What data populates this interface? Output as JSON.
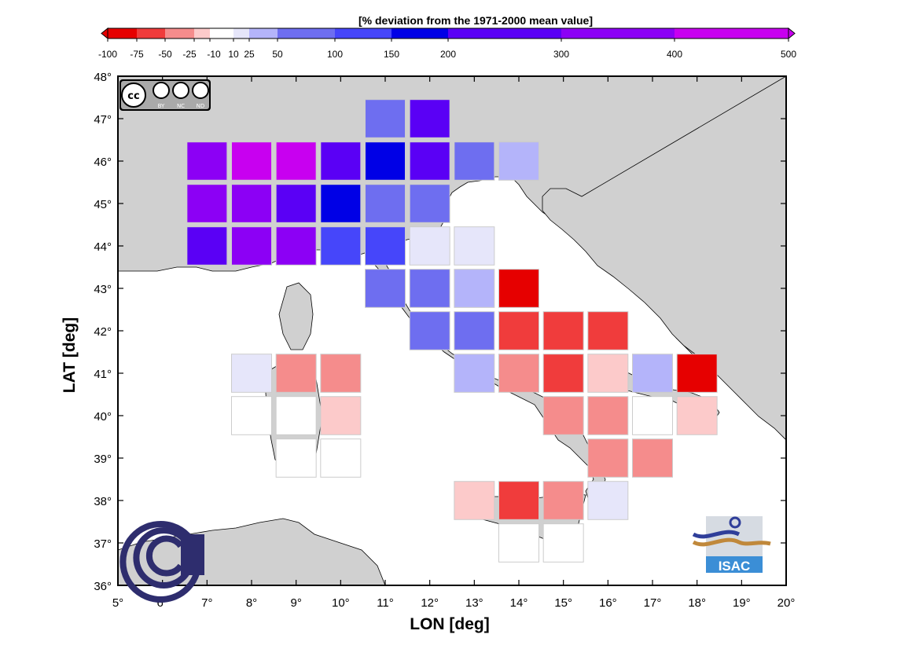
{
  "colorbar": {
    "title": "[% deviation from the 1971-2000 mean value]",
    "stops": [
      -100,
      -75,
      -50,
      -25,
      -10,
      10,
      25,
      50,
      100,
      150,
      200,
      300,
      400,
      500
    ],
    "labels": [
      {
        "value": -100,
        "text": "-100"
      },
      {
        "value": -75,
        "text": "-75"
      },
      {
        "value": -50,
        "text": "-50"
      },
      {
        "value": -25,
        "text": "-25"
      },
      {
        "value": -10,
        "text": "-10"
      },
      {
        "value": 10,
        "text": "10"
      },
      {
        "value": 25,
        "text": "25"
      },
      {
        "value": 50,
        "text": "50"
      },
      {
        "value": 100,
        "text": "100"
      },
      {
        "value": 150,
        "text": "150"
      },
      {
        "value": 200,
        "text": "200"
      },
      {
        "value": 300,
        "text": "300"
      },
      {
        "value": 400,
        "text": "400"
      },
      {
        "value": 500,
        "text": "500"
      }
    ],
    "colors": [
      "#e60000",
      "#f03c3c",
      "#f58c8c",
      "#fccaca",
      "#ffffff",
      "#e6e6fa",
      "#b4b4fa",
      "#6e6ef0",
      "#4646fa",
      "#0000e6",
      "#5a00f5",
      "#8c00f5",
      "#c800f0"
    ],
    "colors_note": "one color per interval between consecutive stops"
  },
  "axes": {
    "xlabel": "LON [deg]",
    "ylabel": "LAT [deg]",
    "xlim": [
      5,
      20
    ],
    "ylim": [
      36,
      48
    ],
    "xticks": [
      "5°",
      "6°",
      "7°",
      "8°",
      "9°",
      "10°",
      "11°",
      "12°",
      "13°",
      "14°",
      "15°",
      "16°",
      "17°",
      "18°",
      "19°",
      "20°"
    ],
    "yticks": [
      "36°",
      "37°",
      "38°",
      "39°",
      "40°",
      "41°",
      "42°",
      "43°",
      "44°",
      "45°",
      "46°",
      "47°",
      "48°"
    ]
  },
  "cells": [
    {
      "lon": 11,
      "lat": 47,
      "color": "#6e6ef0"
    },
    {
      "lon": 12,
      "lat": 47,
      "color": "#5a00f5"
    },
    {
      "lon": 7,
      "lat": 46,
      "color": "#8c00f5"
    },
    {
      "lon": 8,
      "lat": 46,
      "color": "#c800f0"
    },
    {
      "lon": 9,
      "lat": 46,
      "color": "#c800f0"
    },
    {
      "lon": 10,
      "lat": 46,
      "color": "#5a00f5"
    },
    {
      "lon": 11,
      "lat": 46,
      "color": "#0000e6"
    },
    {
      "lon": 12,
      "lat": 46,
      "color": "#5a00f5"
    },
    {
      "lon": 13,
      "lat": 46,
      "color": "#6e6ef0"
    },
    {
      "lon": 14,
      "lat": 46,
      "color": "#b4b4fa"
    },
    {
      "lon": 7,
      "lat": 45,
      "color": "#8c00f5"
    },
    {
      "lon": 8,
      "lat": 45,
      "color": "#8c00f5"
    },
    {
      "lon": 9,
      "lat": 45,
      "color": "#5a00f5"
    },
    {
      "lon": 10,
      "lat": 45,
      "color": "#0000e6"
    },
    {
      "lon": 11,
      "lat": 45,
      "color": "#6e6ef0"
    },
    {
      "lon": 12,
      "lat": 45,
      "color": "#6e6ef0"
    },
    {
      "lon": 7,
      "lat": 44,
      "color": "#5a00f5"
    },
    {
      "lon": 8,
      "lat": 44,
      "color": "#8c00f5"
    },
    {
      "lon": 9,
      "lat": 44,
      "color": "#8c00f5"
    },
    {
      "lon": 10,
      "lat": 44,
      "color": "#4646fa"
    },
    {
      "lon": 11,
      "lat": 44,
      "color": "#4646fa"
    },
    {
      "lon": 12,
      "lat": 44,
      "color": "#e6e6fa"
    },
    {
      "lon": 13,
      "lat": 44,
      "color": "#e6e6fa"
    },
    {
      "lon": 11,
      "lat": 43,
      "color": "#6e6ef0"
    },
    {
      "lon": 12,
      "lat": 43,
      "color": "#6e6ef0"
    },
    {
      "lon": 13,
      "lat": 43,
      "color": "#b4b4fa"
    },
    {
      "lon": 14,
      "lat": 43,
      "color": "#e60000"
    },
    {
      "lon": 12,
      "lat": 42,
      "color": "#6e6ef0"
    },
    {
      "lon": 13,
      "lat": 42,
      "color": "#6e6ef0"
    },
    {
      "lon": 14,
      "lat": 42,
      "color": "#f03c3c"
    },
    {
      "lon": 15,
      "lat": 42,
      "color": "#f03c3c"
    },
    {
      "lon": 16,
      "lat": 42,
      "color": "#f03c3c"
    },
    {
      "lon": 8,
      "lat": 41,
      "color": "#e6e6fa"
    },
    {
      "lon": 9,
      "lat": 41,
      "color": "#f58c8c"
    },
    {
      "lon": 10,
      "lat": 41,
      "color": "#f58c8c"
    },
    {
      "lon": 13,
      "lat": 41,
      "color": "#b4b4fa"
    },
    {
      "lon": 14,
      "lat": 41,
      "color": "#f58c8c"
    },
    {
      "lon": 15,
      "lat": 41,
      "color": "#f03c3c"
    },
    {
      "lon": 16,
      "lat": 41,
      "color": "#fccaca"
    },
    {
      "lon": 17,
      "lat": 41,
      "color": "#b4b4fa"
    },
    {
      "lon": 18,
      "lat": 41,
      "color": "#e60000"
    },
    {
      "lon": 8,
      "lat": 40,
      "color": "#ffffff"
    },
    {
      "lon": 9,
      "lat": 40,
      "color": "#ffffff"
    },
    {
      "lon": 10,
      "lat": 40,
      "color": "#fccaca"
    },
    {
      "lon": 15,
      "lat": 40,
      "color": "#f58c8c"
    },
    {
      "lon": 16,
      "lat": 40,
      "color": "#f58c8c"
    },
    {
      "lon": 17,
      "lat": 40,
      "color": "#ffffff"
    },
    {
      "lon": 18,
      "lat": 40,
      "color": "#fccaca"
    },
    {
      "lon": 9,
      "lat": 39,
      "color": "#ffffff"
    },
    {
      "lon": 10,
      "lat": 39,
      "color": "#ffffff"
    },
    {
      "lon": 16,
      "lat": 39,
      "color": "#f58c8c"
    },
    {
      "lon": 17,
      "lat": 39,
      "color": "#f58c8c"
    },
    {
      "lon": 13,
      "lat": 38,
      "color": "#fccaca"
    },
    {
      "lon": 14,
      "lat": 38,
      "color": "#f03c3c"
    },
    {
      "lon": 15,
      "lat": 38,
      "color": "#f58c8c"
    },
    {
      "lon": 16,
      "lat": 38,
      "color": "#e6e6fa"
    },
    {
      "lon": 14,
      "lat": 37,
      "color": "#ffffff"
    },
    {
      "lon": 15,
      "lat": 37,
      "color": "#ffffff"
    }
  ],
  "logos": {
    "license": {
      "letters": "cc",
      "labels": [
        "BY",
        "NC",
        "ND"
      ]
    },
    "isac": {
      "text": "ISAC"
    }
  }
}
